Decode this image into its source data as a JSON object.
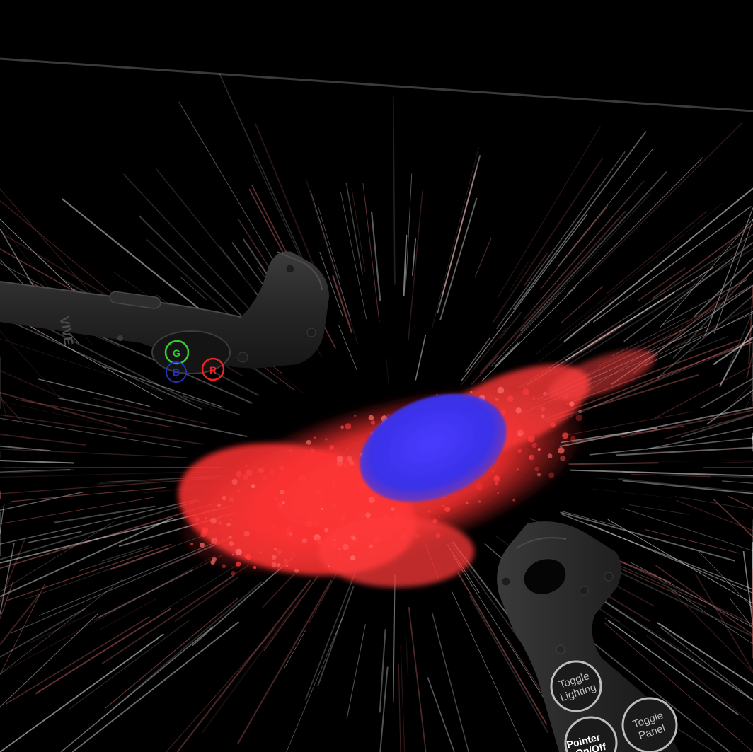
{
  "scene": {
    "background_color": "#000000",
    "horizon_line_color": "#3a3a3a",
    "cell_membrane_color": "#ff3b3b",
    "cell_nucleus_color": "#3a3aff",
    "volume_streak_color": "#c86464"
  },
  "left_controller": {
    "brand_mark": "VIVE",
    "buttons": {
      "green": {
        "glyph": "G",
        "color": "#33cc33"
      },
      "blue": {
        "glyph": "B",
        "color": "#2233bb"
      },
      "red": {
        "glyph": "R",
        "color": "#ee2222"
      }
    }
  },
  "right_controller": {
    "buttons": {
      "toggle_lighting": {
        "line1": "Toggle",
        "line2": "Lighting"
      },
      "toggle_panel": {
        "line1": "Toggle",
        "line2": "Panel"
      },
      "pointer": {
        "line1": "Pointer",
        "line2": "On/Off"
      }
    }
  }
}
